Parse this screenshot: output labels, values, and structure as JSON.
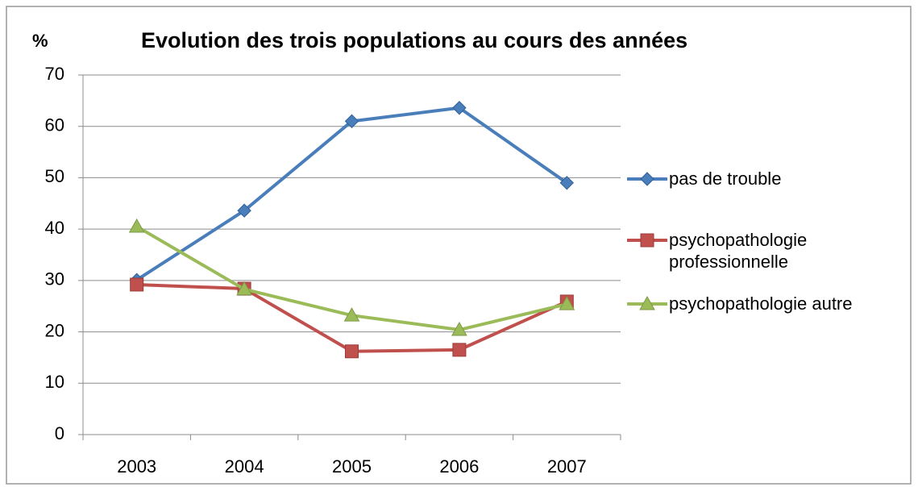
{
  "chart_data": {
    "type": "line",
    "title": "Evolution des trois populations au cours des années",
    "y_label": "%",
    "categories": [
      "2003",
      "2004",
      "2005",
      "2006",
      "2007"
    ],
    "series": [
      {
        "name": "pas de trouble",
        "color": "#4a7ebb",
        "marker": "diamond",
        "values": [
          30.1,
          43.6,
          61,
          63.6,
          49
        ]
      },
      {
        "name": "psychopathologie professionnelle",
        "color": "#c0504d",
        "marker": "square",
        "values": [
          29.2,
          28.4,
          16.2,
          16.5,
          25.9
        ]
      },
      {
        "name": "psychopathologie autre",
        "color": "#9bbb59",
        "marker": "triangle",
        "values": [
          40.5,
          28.3,
          23.2,
          20.4,
          25.4
        ]
      }
    ],
    "ylim": [
      0,
      70
    ],
    "yticks": [
      0,
      10,
      20,
      30,
      40,
      50,
      60,
      70
    ],
    "grid": true,
    "legend": "right"
  }
}
